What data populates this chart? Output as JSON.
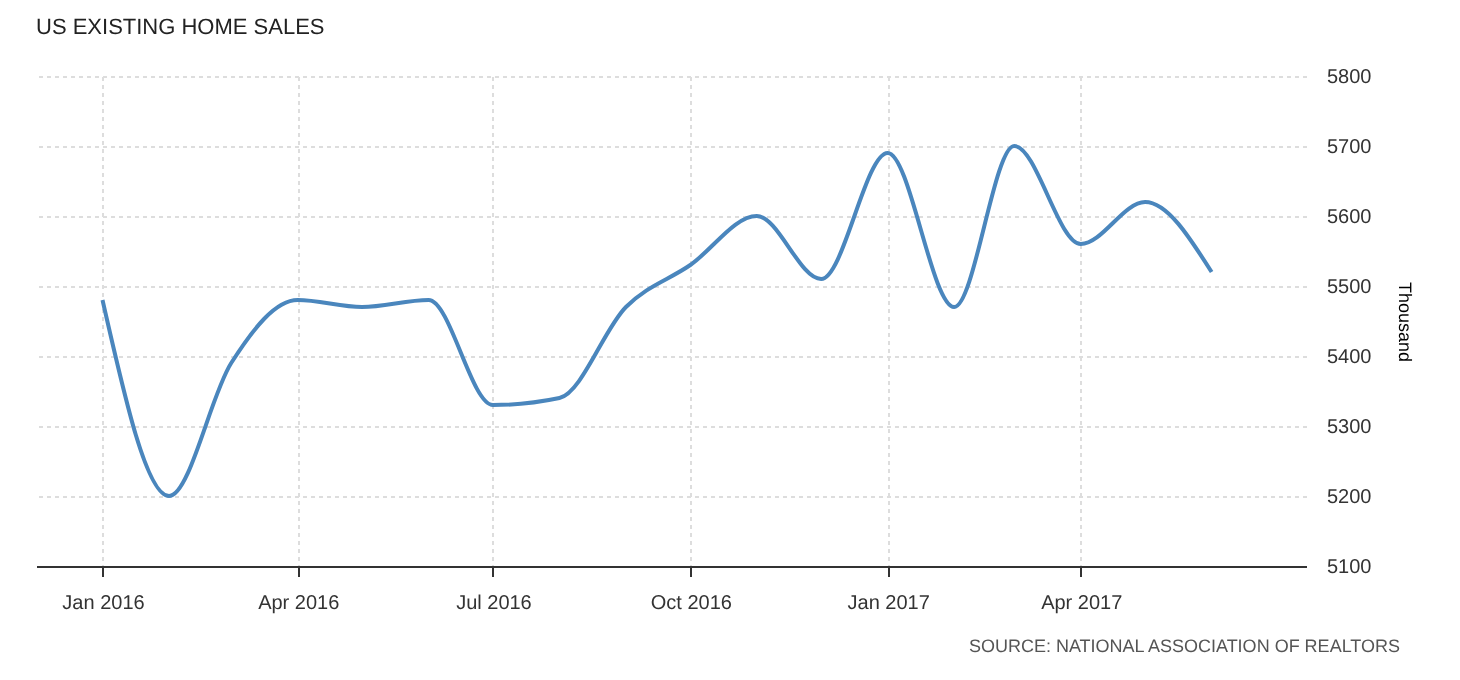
{
  "chart_data": {
    "type": "line",
    "title": "US EXISTING HOME SALES",
    "ylabel": "Thousand",
    "x": [
      "2016-01",
      "2016-02",
      "2016-03",
      "2016-04",
      "2016-05",
      "2016-06",
      "2016-07",
      "2016-08",
      "2016-09",
      "2016-10",
      "2016-11",
      "2016-12",
      "2017-01",
      "2017-02",
      "2017-03",
      "2017-04",
      "2017-05",
      "2017-06"
    ],
    "series": [
      {
        "color": "#4a86bd",
        "values": [
          5480,
          5200,
          5390,
          5480,
          5470,
          5480,
          5330,
          5340,
          5470,
          5530,
          5600,
          5510,
          5690,
          5470,
          5700,
          5560,
          5620,
          5520
        ]
      }
    ],
    "xlim": [
      "2015-12",
      "2017-07-15"
    ],
    "xticks": [
      {
        "value": "2016-01",
        "label": "Jan 2016"
      },
      {
        "value": "2016-04",
        "label": "Apr 2016"
      },
      {
        "value": "2016-07",
        "label": "Jul 2016"
      },
      {
        "value": "2016-10",
        "label": "Oct 2016"
      },
      {
        "value": "2017-01",
        "label": "Jan 2017"
      },
      {
        "value": "2017-04",
        "label": "Apr 2017"
      }
    ],
    "ylim": [
      5100,
      5800
    ],
    "yticks": [
      5100,
      5200,
      5300,
      5400,
      5500,
      5600,
      5700,
      5800
    ],
    "grid": true,
    "marker": "none",
    "line_style": "solid",
    "annotations": [
      "SOURCE: NATIONAL ASSOCIATION OF REALTORS"
    ]
  }
}
